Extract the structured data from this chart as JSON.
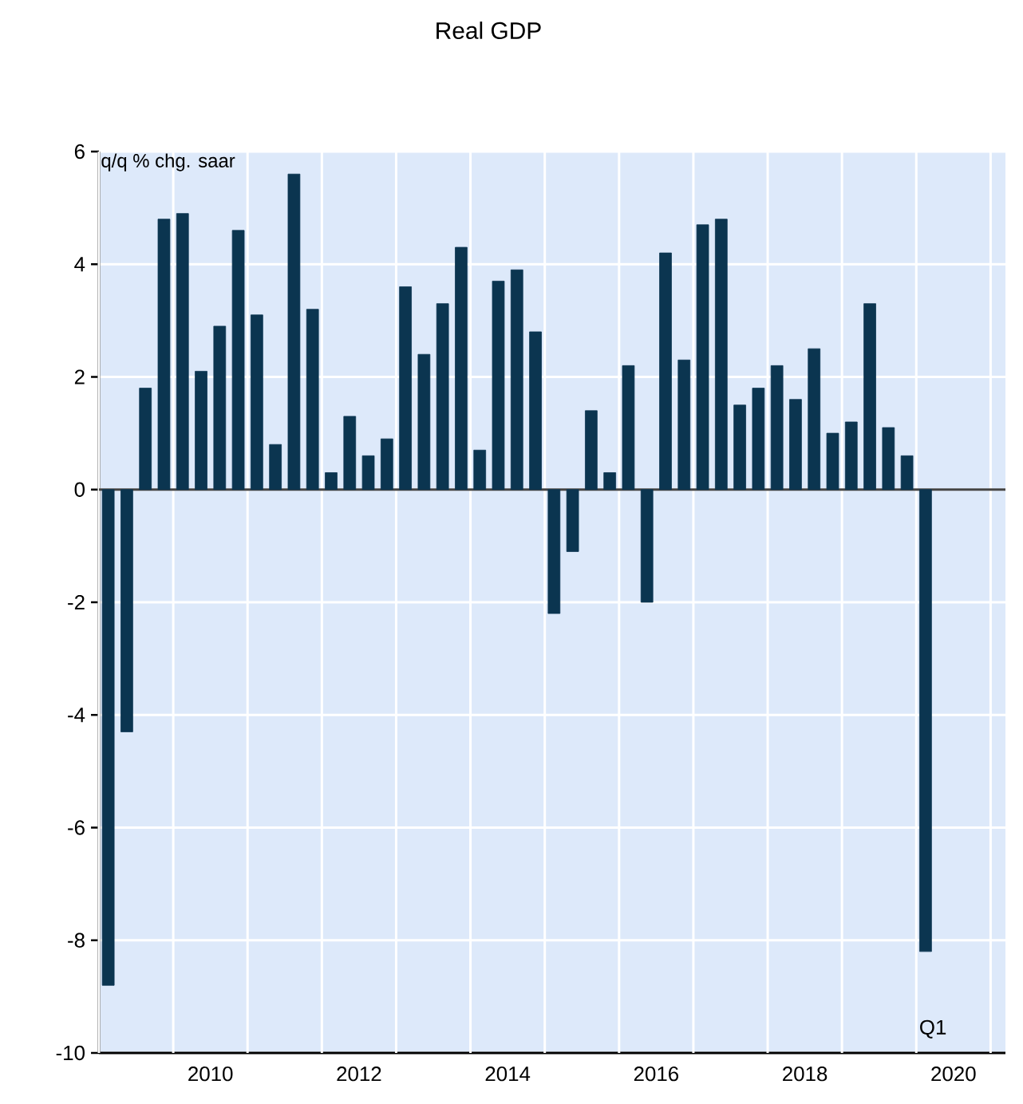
{
  "chart_data": {
    "type": "bar",
    "title": "Real GDP",
    "ylabel": "q/q % chg. saar",
    "x": [
      2009.125,
      2009.375,
      2009.625,
      2009.875,
      2010.125,
      2010.375,
      2010.625,
      2010.875,
      2011.125,
      2011.375,
      2011.625,
      2011.875,
      2012.125,
      2012.375,
      2012.625,
      2012.875,
      2013.125,
      2013.375,
      2013.625,
      2013.875,
      2014.125,
      2014.375,
      2014.625,
      2014.875,
      2015.125,
      2015.375,
      2015.625,
      2015.875,
      2016.125,
      2016.375,
      2016.625,
      2016.875,
      2017.125,
      2017.375,
      2017.625,
      2017.875,
      2018.125,
      2018.375,
      2018.625,
      2018.875,
      2019.125,
      2019.375,
      2019.625,
      2019.875,
      2020.125
    ],
    "values": [
      -8.8,
      -4.3,
      1.8,
      4.8,
      4.9,
      2.1,
      2.9,
      4.6,
      3.1,
      0.8,
      5.6,
      3.2,
      0.3,
      1.3,
      0.6,
      0.9,
      3.6,
      2.4,
      3.3,
      4.3,
      0.7,
      3.7,
      3.9,
      2.8,
      -2.2,
      -1.1,
      1.4,
      0.3,
      2.2,
      -2.0,
      4.2,
      2.3,
      4.7,
      4.8,
      1.5,
      1.8,
      2.2,
      1.6,
      2.5,
      1.0,
      1.2,
      3.3,
      1.1,
      0.6,
      -8.2
    ],
    "color": "#0b3550",
    "xlim": [
      2009,
      2021.2
    ],
    "xticks": [
      {
        "value": 2009,
        "label": null
      },
      {
        "value": 2010,
        "label": null
      },
      {
        "value": 2011,
        "label": null
      },
      {
        "value": 2012,
        "label": null
      },
      {
        "value": 2013,
        "label": null
      },
      {
        "value": 2014,
        "label": null
      },
      {
        "value": 2015,
        "label": null
      },
      {
        "value": 2016,
        "label": null
      },
      {
        "value": 2017,
        "label": null
      },
      {
        "value": 2018,
        "label": null
      },
      {
        "value": 2019,
        "label": null
      },
      {
        "value": 2020,
        "label": null
      },
      {
        "value": 2021,
        "label": null
      },
      {
        "value": 2010.5,
        "label": "2010"
      },
      {
        "value": 2012.5,
        "label": "2012"
      },
      {
        "value": 2014.5,
        "label": "2014"
      },
      {
        "value": 2016.5,
        "label": "2016"
      },
      {
        "value": 2018.5,
        "label": "2018"
      },
      {
        "value": 2020.5,
        "label": "2020"
      }
    ],
    "ylim": [
      -10,
      6
    ],
    "yticks": [
      -10,
      -8,
      -6,
      -4,
      -2,
      0,
      2,
      4,
      6
    ],
    "grid": true,
    "ref_lines": [
      {
        "axis": "y",
        "value": 0,
        "color": "#444444"
      }
    ],
    "annotations": [
      "Q1"
    ]
  }
}
